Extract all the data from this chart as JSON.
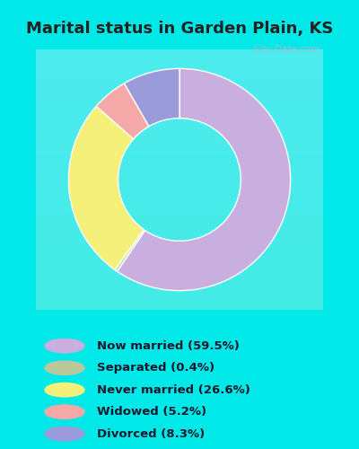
{
  "title": "Marital status in Garden Plain, KS",
  "categories": [
    "Now married",
    "Separated",
    "Never married",
    "Widowed",
    "Divorced"
  ],
  "values": [
    59.5,
    0.4,
    26.6,
    5.2,
    8.3
  ],
  "colors": [
    "#c9aee0",
    "#b8d8a8",
    "#f5f07a",
    "#f4a8a8",
    "#9b9bdb"
  ],
  "legend_labels": [
    "Now married (59.5%)",
    "Separated (0.4%)",
    "Never married (26.6%)",
    "Widowed (5.2%)",
    "Divorced (8.3%)"
  ],
  "legend_colors": [
    "#c9aee0",
    "#b8c89a",
    "#f5f07a",
    "#f4a8a8",
    "#9b9bdb"
  ],
  "bg_cyan": "#00e8e8",
  "bg_chart_gradient_top": "#e8f5e8",
  "watermark": "City-Data.com",
  "title_fontsize": 13,
  "title_color": "#222222"
}
